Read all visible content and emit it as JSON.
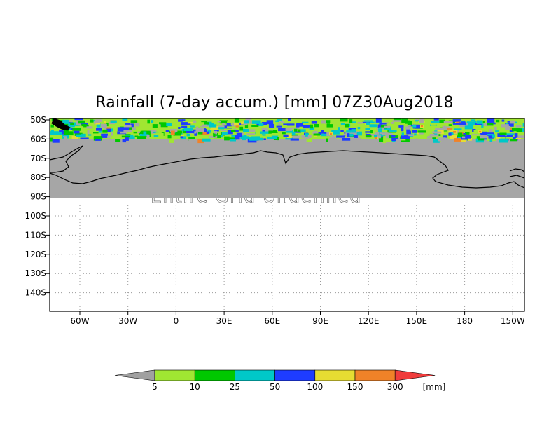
{
  "title": "Rainfall (7-day accum.) [mm] 07Z30Aug2018",
  "map": {
    "lat_labels": [
      "50S",
      "60S",
      "70S",
      "80S",
      "90S",
      "100S",
      "110S",
      "120S",
      "130S",
      "140S"
    ],
    "lon_labels": [
      "60W",
      "30W",
      "0",
      "30E",
      "60E",
      "90E",
      "120E",
      "150E",
      "180",
      "150W"
    ],
    "overlay_text": "Entire Grid Undefined",
    "undefined_color": "#a6a6a6",
    "coastline_color": "#000000",
    "grid_style": "dotted"
  },
  "colorbar": {
    "unit": "[mm]",
    "below_color": "#a0a0a0",
    "above_color": "#f03c3c",
    "bins": [
      {
        "color": "#a0e632"
      },
      {
        "color": "#00c800"
      },
      {
        "color": "#00c8c8"
      },
      {
        "color": "#1e3cff"
      },
      {
        "color": "#e6dc32"
      },
      {
        "color": "#f08228"
      }
    ],
    "ticks": [
      "5",
      "10",
      "25",
      "50",
      "100",
      "150",
      "300"
    ]
  }
}
